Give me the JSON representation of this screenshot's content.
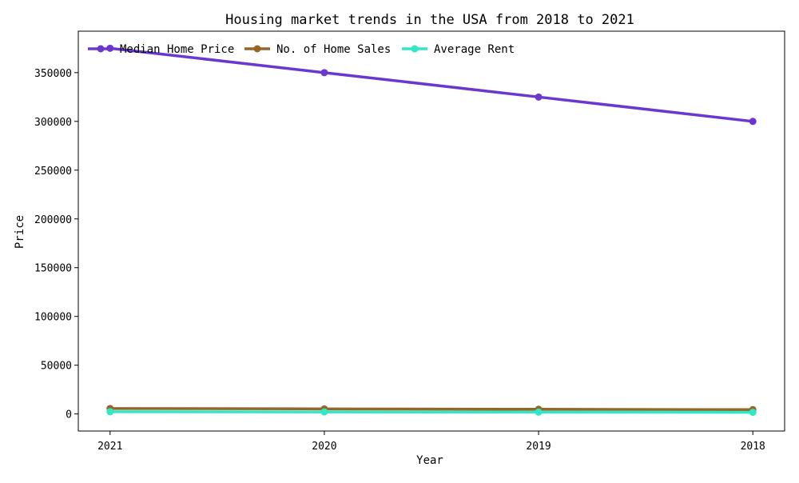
{
  "chart_data": {
    "type": "line",
    "title": "Housing market trends in the USA from 2018 to 2021",
    "xlabel": "Year",
    "ylabel": "Price",
    "categories": [
      "2021",
      "2020",
      "2019",
      "2018"
    ],
    "ylim": [
      -17500,
      392500
    ],
    "yticks": [
      0,
      50000,
      100000,
      150000,
      200000,
      250000,
      300000,
      350000
    ],
    "ytick_labels": [
      "0",
      "50000",
      "100000",
      "150000",
      "200000",
      "250000",
      "300000",
      "350000"
    ],
    "grid": false,
    "legend_position": "top-left",
    "series": [
      {
        "name": "Median Home Price",
        "color": "#6a38cf",
        "values": [
          375000,
          350000,
          325000,
          300000
        ]
      },
      {
        "name": "No. of Home Sales",
        "color": "#956628",
        "values": [
          5600,
          5200,
          4800,
          4400
        ]
      },
      {
        "name": "Average Rent",
        "color": "#30e8c5",
        "values": [
          2300,
          2100,
          1900,
          1700
        ]
      }
    ]
  }
}
